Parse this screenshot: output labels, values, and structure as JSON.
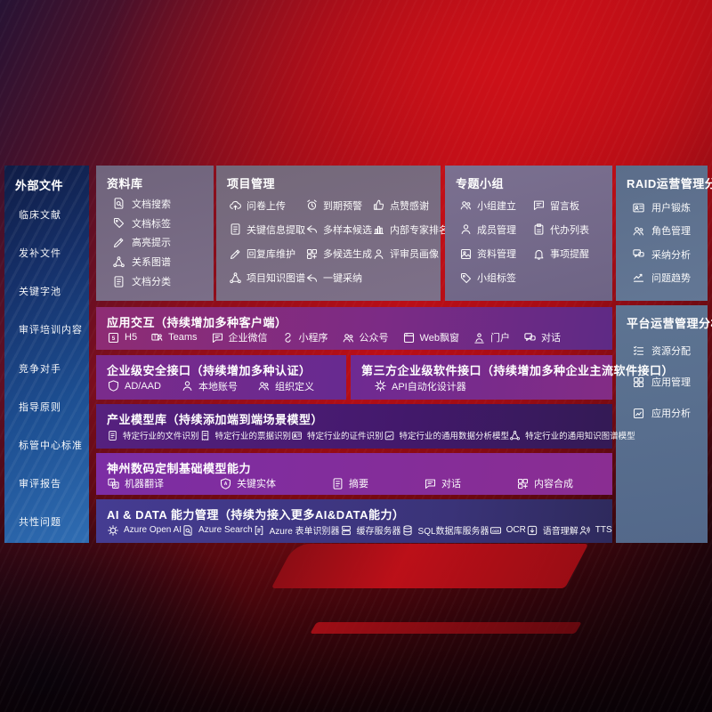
{
  "colors": {
    "background_red": "#bb0e17",
    "sidebar_blue": "#1d4f92",
    "panel_gray": "#746879",
    "panel_blue": "#5d7492",
    "row_magenta": "#8e2c74",
    "row_purple": "#7c2b85",
    "row_violet": "#43196c",
    "row_indigo": "#3a3378"
  },
  "sidebar": {
    "title": "外部文件",
    "items": [
      {
        "label": "临床文献"
      },
      {
        "label": "发补文件"
      },
      {
        "label": "关键字池"
      },
      {
        "label": "审评培训内容"
      },
      {
        "label": "竞争对手"
      },
      {
        "label": "指导原则"
      },
      {
        "label": "标管中心标准"
      },
      {
        "label": "审评报告"
      },
      {
        "label": "共性问题"
      }
    ]
  },
  "library": {
    "title": "资料库",
    "items": [
      {
        "label": "文档搜索",
        "icon": "doc-search"
      },
      {
        "label": "文档标签",
        "icon": "doc-tag"
      },
      {
        "label": "高亮提示",
        "icon": "highlight-pen"
      },
      {
        "label": "关系图谱",
        "icon": "relation-graph"
      },
      {
        "label": "文档分类",
        "icon": "doc-category"
      }
    ]
  },
  "project": {
    "title": "项目管理",
    "items": [
      {
        "label": "问卷上传",
        "icon": "cloud-upload"
      },
      {
        "label": "到期预警",
        "icon": "alarm"
      },
      {
        "label": "点赞感谢",
        "icon": "thumbs-up"
      },
      {
        "label": "关键信息提取",
        "icon": "doc-extract"
      },
      {
        "label": "多样本候选",
        "icon": "multi-sample"
      },
      {
        "label": "内部专家排名",
        "icon": "expert-rank"
      },
      {
        "label": "回复库维护",
        "icon": "reply-maintain"
      },
      {
        "label": "多候选生成",
        "icon": "multi-generate"
      },
      {
        "label": "评审员画像",
        "icon": "reviewer-portrait"
      },
      {
        "label": "项目知识图谱",
        "icon": "project-knowledge-graph"
      },
      {
        "label": "一键采纳",
        "icon": "one-click-adopt"
      }
    ]
  },
  "topics": {
    "title": "专题小组",
    "items": [
      {
        "label": "小组建立",
        "icon": "team-create"
      },
      {
        "label": "留言板",
        "icon": "bbs-board"
      },
      {
        "label": "成员管理",
        "icon": "member-manage"
      },
      {
        "label": "代办列表",
        "icon": "todo-list"
      },
      {
        "label": "资料管理",
        "icon": "data-manage"
      },
      {
        "label": "事项提醒",
        "icon": "remind-bell"
      },
      {
        "label": "小组标签",
        "icon": "group-tag"
      }
    ]
  },
  "raid": {
    "title": "RAID运营管理分析",
    "items": [
      {
        "label": "用户锻炼",
        "icon": "id-card"
      },
      {
        "label": "角色管理",
        "icon": "roles"
      },
      {
        "label": "采纳分析",
        "icon": "qa-analysis"
      },
      {
        "label": "问题趋势",
        "icon": "trend"
      }
    ]
  },
  "platform": {
    "title": "平台运营管理分析",
    "items": [
      {
        "label": "资源分配",
        "icon": "resource-list"
      },
      {
        "label": "应用管理",
        "icon": "app-grid"
      },
      {
        "label": "应用分析",
        "icon": "app-analysis"
      }
    ]
  },
  "interaction": {
    "title": "应用交互（持续增加多种客户端）",
    "items": [
      {
        "label": "H5",
        "icon": "h5"
      },
      {
        "label": "Teams",
        "icon": "teams"
      },
      {
        "label": "企业微信",
        "icon": "wecom"
      },
      {
        "label": "小程序",
        "icon": "miniprogram"
      },
      {
        "label": "公众号",
        "icon": "official-account"
      },
      {
        "label": "Web飘窗",
        "icon": "web-window"
      },
      {
        "label": "门户",
        "icon": "portal"
      },
      {
        "label": "对话",
        "icon": "dialog"
      }
    ]
  },
  "security": {
    "title": "企业级安全接口（持续增加多种认证）",
    "items": [
      {
        "label": "AD/AAD",
        "icon": "ad-shield"
      },
      {
        "label": "本地账号",
        "icon": "local-account"
      },
      {
        "label": "组织定义",
        "icon": "org-define"
      }
    ]
  },
  "third_party": {
    "title": "第三方企业级软件接口（持续增加多种企业主流软件接口）",
    "items": [
      {
        "label": "API自动化设计器",
        "icon": "api-designer"
      }
    ]
  },
  "industry_models": {
    "title": "产业模型库（持续添加端到端场景模型）",
    "items": [
      {
        "label": "特定行业的文件识别",
        "icon": "file-recognition"
      },
      {
        "label": "特定行业的票据识别",
        "icon": "bill-recognition"
      },
      {
        "label": "特定行业的证件识别",
        "icon": "cert-recognition"
      },
      {
        "label": "特定行业的通用数据分析模型",
        "icon": "data-analysis-model"
      },
      {
        "label": "特定行业的通用知识图谱模型",
        "icon": "knowledge-graph-model"
      }
    ]
  },
  "base_models": {
    "title": "神州数码定制基础模型能力",
    "items": [
      {
        "label": "机器翻译",
        "icon": "translate"
      },
      {
        "label": "关键实体",
        "icon": "key-entity"
      },
      {
        "label": "摘要",
        "icon": "summary"
      },
      {
        "label": "对话",
        "icon": "chat"
      },
      {
        "label": "内容合成",
        "icon": "content-compose"
      }
    ]
  },
  "ai_data": {
    "title": "AI & DATA 能力管理（持续为接入更多AI&DATA能力）",
    "items": [
      {
        "label": "Azure Open AI",
        "icon": "openai"
      },
      {
        "label": "Azure Search",
        "icon": "azure-search"
      },
      {
        "label": "Azure 表单识别器",
        "icon": "form-recognizer"
      },
      {
        "label": "缓存服务器",
        "icon": "cache-server"
      },
      {
        "label": "SQL数据库服务器",
        "icon": "sql-server"
      },
      {
        "label": "OCR",
        "icon": "ocr"
      },
      {
        "label": "语音理解",
        "icon": "speech-understanding"
      },
      {
        "label": "TTS",
        "icon": "tts"
      }
    ]
  }
}
